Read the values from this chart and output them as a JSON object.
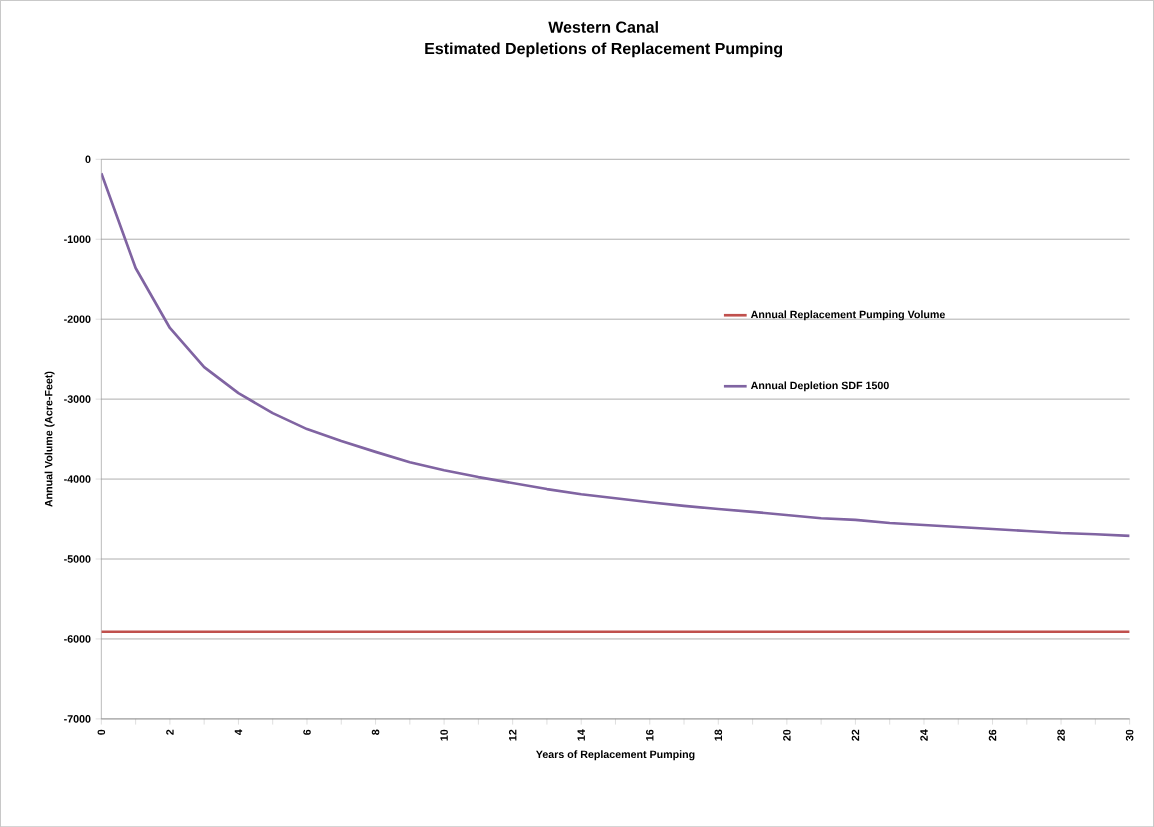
{
  "chart_data": {
    "type": "line",
    "title": "Western Canal",
    "subtitle": "Estimated Depletions of Replacement Pumping",
    "xlabel": "Years of Replacement Pumping",
    "ylabel": "Annual Volume (Acre-Feet)",
    "xlim": [
      0,
      30
    ],
    "ylim": [
      -7000,
      0
    ],
    "xticks": [
      0,
      {
        "value": 1,
        "label": null
      },
      2,
      {
        "value": 3,
        "label": null
      },
      4,
      {
        "value": 5,
        "label": null
      },
      6,
      {
        "value": 7,
        "label": null
      },
      8,
      {
        "value": 9,
        "label": null
      },
      10,
      {
        "value": 11,
        "label": null
      },
      12,
      {
        "value": 13,
        "label": null
      },
      14,
      {
        "value": 15,
        "label": null
      },
      16,
      {
        "value": 17,
        "label": null
      },
      18,
      {
        "value": 19,
        "label": null
      },
      20,
      {
        "value": 21,
        "label": null
      },
      22,
      {
        "value": 23,
        "label": null
      },
      24,
      {
        "value": 25,
        "label": null
      },
      26,
      {
        "value": 27,
        "label": null
      },
      28,
      {
        "value": 29,
        "label": null
      },
      30
    ],
    "yticks": [
      -7000,
      -6000,
      -5000,
      -4000,
      -3000,
      -2000,
      -1000,
      0
    ],
    "grid": "y",
    "legend": "right",
    "marker": "none",
    "series": [
      {
        "name": "Annual Replacement Pumping Volume",
        "color": "#c0504d",
        "x": [
          0,
          30
        ],
        "values": [
          -5910,
          -5910
        ]
      },
      {
        "name": "Annual Depletion SDF 1500",
        "color": "#8064a2",
        "x": [
          0,
          1,
          2,
          3,
          4,
          5,
          6,
          7,
          8,
          9,
          10,
          11,
          12,
          13,
          14,
          15,
          16,
          17,
          18,
          19,
          20,
          21,
          22,
          23,
          24,
          25,
          26,
          27,
          28,
          29,
          30
        ],
        "values": [
          -175,
          -1360,
          -2110,
          -2600,
          -2925,
          -3175,
          -3375,
          -3525,
          -3660,
          -3790,
          -3890,
          -3975,
          -4050,
          -4125,
          -4190,
          -4240,
          -4290,
          -4335,
          -4375,
          -4410,
          -4450,
          -4490,
          -4510,
          -4550,
          -4575,
          -4600,
          -4625,
          -4650,
          -4675,
          -4690,
          -4710
        ]
      }
    ]
  }
}
